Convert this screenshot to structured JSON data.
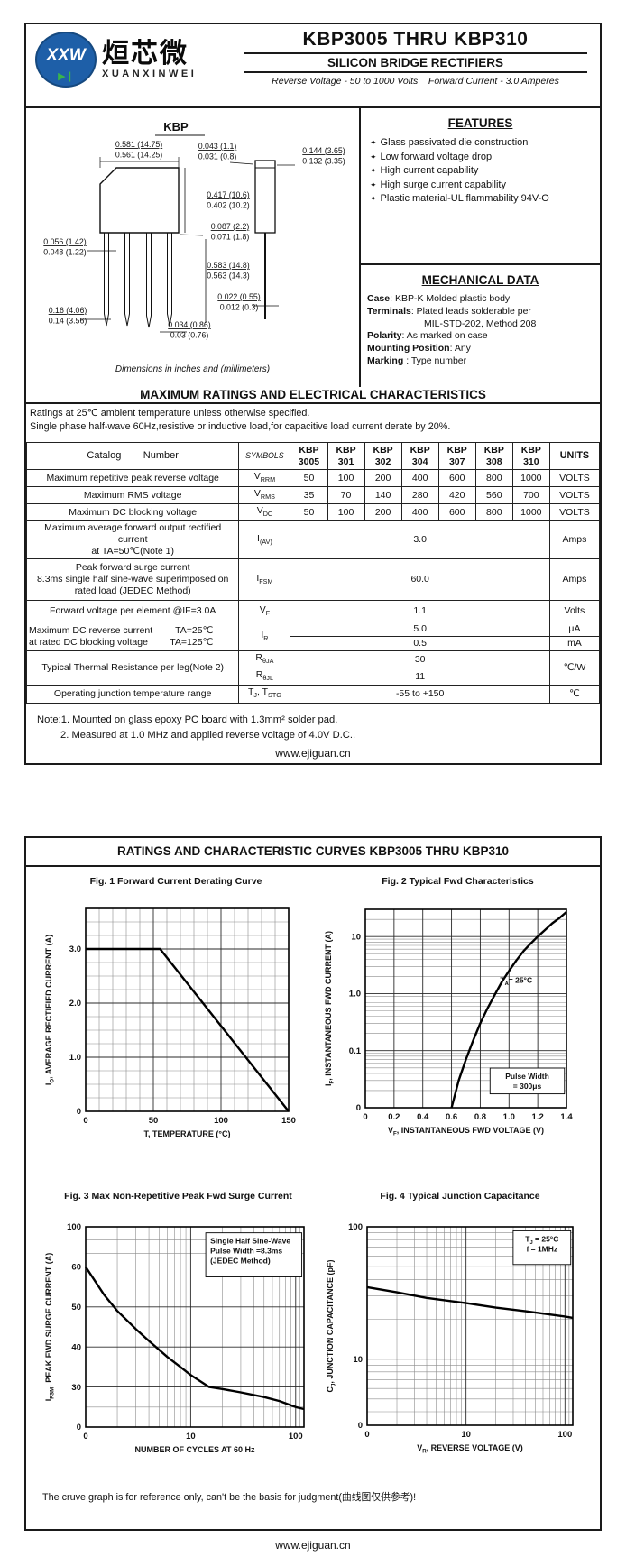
{
  "page1": {
    "logo": {
      "monogram": "XXW",
      "diode": "▶❙",
      "chinese": "烜芯微",
      "romanized": "XUANXINWEI"
    },
    "title": "KBP3005 THRU KBP310",
    "subtitle": "SILICON BRIDGE RECTIFIERS",
    "tagline": "Reverse Voltage - 50 to 1000 Volts    Forward Current - 3.0 Amperes",
    "package": {
      "name": "KBP",
      "caption": "Dimensions in inches and (millimeters)",
      "dims": [
        {
          "a": "0.581 (14.75)",
          "b": "0.561 (14.25)"
        },
        {
          "a": "0.043 (1.1)",
          "b": "0.031 (0.8)"
        },
        {
          "a": "0.144 (3.65)",
          "b": "0.132 (3.35)"
        },
        {
          "a": "0.417 (10.6)",
          "b": "0.402 (10.2)"
        },
        {
          "a": "0.087 (2.2)",
          "b": "0.071 (1.8)"
        },
        {
          "a": "0.056 (1.42)",
          "b": "0.048 (1.22)"
        },
        {
          "a": "0.583 (14.8)",
          "b": "0.563 (14.3)"
        },
        {
          "a": "0.022 (0.55)",
          "b": "0.012 (0.3)"
        },
        {
          "a": "0.16 (4.06)",
          "b": "0.14 (3.56)"
        },
        {
          "a": "0.034 (0.86)",
          "b": "0.03 (0.76)"
        }
      ]
    },
    "features": {
      "title": "FEATURES",
      "items": [
        "Glass passivated die construction",
        "Low forward voltage drop",
        "High current capability",
        "High  surge current capability",
        "Plastic material-UL flammability 94V-O"
      ]
    },
    "mechanical": {
      "title": "MECHANICAL DATA",
      "rows": [
        {
          "b": "Case",
          "t": ": KBP-K Molded plastic body"
        },
        {
          "b": "Terminals",
          "t": ": Plated leads solderable per"
        },
        {
          "b": "",
          "t": "MIL-STD-202, Method 208"
        },
        {
          "b": "Polarity",
          "t": ": As marked on case"
        },
        {
          "b": "Mounting Position",
          "t": ": Any"
        },
        {
          "b": "Marking ",
          "t": ": Type number"
        }
      ]
    },
    "ratings": {
      "title": "MAXIMUM RATINGS AND ELECTRICAL CHARACTERISTICS",
      "cond1": "Ratings at 25℃ ambient temperature unless otherwise specified.",
      "cond2": "Single phase half-wave 60Hz,resistive or inductive load,for capacitive load current derate by 20%.",
      "table": {
        "catalog_header": "Catalog        Number",
        "symbols_header": "SYMBOLS",
        "units_header": "UNITS",
        "models": [
          [
            "KBP",
            "3005"
          ],
          [
            "KBP",
            "301"
          ],
          [
            "KBP",
            "302"
          ],
          [
            "KBP",
            "304"
          ],
          [
            "KBP",
            "307"
          ],
          [
            "KBP",
            "308"
          ],
          [
            "KBP",
            "310"
          ]
        ],
        "rows": [
          {
            "label": "Maximum repetitive peak reverse voltage",
            "sym": "V",
            "sub": "RRM",
            "values": [
              "50",
              "100",
              "200",
              "400",
              "600",
              "800",
              "1000"
            ],
            "unit": "VOLTS"
          },
          {
            "label": "Maximum RMS voltage",
            "sym": "V",
            "sub": "RMS",
            "values": [
              "35",
              "70",
              "140",
              "280",
              "420",
              "560",
              "700"
            ],
            "unit": "VOLTS"
          },
          {
            "label": "Maximum DC blocking voltage",
            "sym": "V",
            "sub": "DC",
            "values": [
              "50",
              "100",
              "200",
              "400",
              "600",
              "800",
              "1000"
            ],
            "unit": "VOLTS"
          },
          {
            "label1": "Maximum average forward output rectified current",
            "label2": "at TA=50℃(Note 1)",
            "sym": "I",
            "sub": "(AV)",
            "value": "3.0",
            "unit": "Amps"
          },
          {
            "label1": "Peak forward surge current",
            "label2": "8.3ms single half sine-wave superimposed on",
            "label3": "rated load (JEDEC Method)",
            "sym": "I",
            "sub": "FSM",
            "value": "60.0",
            "unit": "Amps"
          },
          {
            "label": "Forward voltage per element  @IF=3.0A",
            "sym": "V",
            "sub": "F",
            "value": "1.1",
            "unit": "Volts"
          },
          {
            "label1": "Maximum DC reverse current",
            "cond1": "TA=25℃",
            "label2": "at rated DC blocking voltage",
            "cond2": "TA=125℃",
            "sym": "I",
            "sub": "R",
            "value1": "5.0",
            "unit1": "μA",
            "value2": "0.5",
            "unit2": "mA"
          },
          {
            "label": "Typical Thermal Resistance per leg(Note 2)",
            "sym1": "R",
            "sub1": "θJA",
            "sym2": "R",
            "sub2": "θJL",
            "value1": "30",
            "value2": "11",
            "unit": "℃/W"
          },
          {
            "label": "Operating junction temperature range",
            "symA": "T",
            "subA": "J",
            "symB": ", T",
            "subB": "STG",
            "value": "-55 to +150",
            "unit": "℃"
          }
        ]
      }
    },
    "notes": [
      "Note:1. Mounted on  glass epoxy  PC board with 1.3mm² solder pad.",
      "2. Measured at 1.0 MHz and applied reverse voltage of 4.0V D.C.."
    ],
    "footer": "www.ejiguan.cn"
  },
  "page2": {
    "title": "RATINGS AND CHARACTERISTIC CURVES KBP3005 THRU KBP310",
    "disclaimer": "The cruve graph is for reference only, can't be the basis for judgment(曲线图仅供参考)!",
    "footer": "www.ejiguan.cn"
  },
  "colors": {
    "brand_blue": "#1e5fa8",
    "diode_green": "#39b54a",
    "ink": "#111111"
  },
  "chart_data": [
    {
      "id": "fig1",
      "type": "line",
      "title": "Fig. 1 Forward Current Derating Curve",
      "xlabel": "T, TEMPERATURE (°C)",
      "ylabel": {
        "pre": "I",
        "sub": "O",
        "rest": ", AVERAGE RECTIFIED CURRENT (A)"
      },
      "xscale": {
        "type": "linear",
        "min": 0,
        "max": 150
      },
      "yscale": {
        "type": "linear",
        "min": 0,
        "max": 3.75
      },
      "xticks": [
        {
          "v": 0,
          "l": "0"
        },
        {
          "v": 50,
          "l": "50"
        },
        {
          "v": 100,
          "l": "100"
        },
        {
          "v": 150,
          "l": "150"
        }
      ],
      "yticks": [
        {
          "v": 0,
          "l": "0"
        },
        {
          "v": 1,
          "l": "1.0"
        },
        {
          "v": 2,
          "l": "2.0"
        },
        {
          "v": 3,
          "l": "3.0"
        }
      ],
      "xminor": [
        10,
        20,
        30,
        40,
        60,
        70,
        80,
        90,
        110,
        120,
        130,
        140
      ],
      "yminor": [
        0.25,
        0.5,
        0.75,
        1.25,
        1.5,
        1.75,
        2.25,
        2.5,
        2.75,
        3.25,
        3.5,
        3.75
      ],
      "points": [
        [
          0,
          3
        ],
        [
          55,
          3
        ],
        [
          150,
          0
        ]
      ]
    },
    {
      "id": "fig2",
      "type": "line",
      "title": "Fig. 2  Typical Fwd Characteristics",
      "xlabel": {
        "pre": "V",
        "sub": "F",
        "rest": ", INSTANTANEOUS FWD VOLTAGE (V)"
      },
      "ylabel": {
        "pre": "I",
        "sub": "F",
        "rest": ", INSTANTANEOUS FWD CURRENT (A)"
      },
      "xscale": {
        "type": "linear",
        "min": 0,
        "max": 1.4
      },
      "yscale": {
        "type": "log",
        "min": 0.01,
        "max": 30
      },
      "xticks": [
        {
          "v": 0,
          "l": "0"
        },
        {
          "v": 0.2,
          "l": "0.2"
        },
        {
          "v": 0.4,
          "l": "0.4"
        },
        {
          "v": 0.6,
          "l": "0.6"
        },
        {
          "v": 0.8,
          "l": "0.8"
        },
        {
          "v": 1.0,
          "l": "1.0"
        },
        {
          "v": 1.2,
          "l": "1.2"
        },
        {
          "v": 1.4,
          "l": "1.4"
        }
      ],
      "yticks": [
        {
          "v": 10,
          "l": "10"
        },
        {
          "v": 1,
          "l": "1.0"
        },
        {
          "v": 0.1,
          "l": "0.1"
        },
        {
          "v": 0.01,
          "l": "0"
        }
      ],
      "yminor": [
        0.02,
        0.03,
        0.04,
        0.05,
        0.06,
        0.07,
        0.08,
        0.09,
        0.2,
        0.3,
        0.4,
        0.5,
        0.6,
        0.7,
        0.8,
        0.9,
        2,
        3,
        4,
        5,
        6,
        7,
        8,
        9,
        20
      ],
      "points": [
        [
          0.6,
          0.01
        ],
        [
          0.65,
          0.03
        ],
        [
          0.7,
          0.07
        ],
        [
          0.75,
          0.15
        ],
        [
          0.8,
          0.3
        ],
        [
          0.85,
          0.55
        ],
        [
          0.9,
          0.95
        ],
        [
          0.95,
          1.6
        ],
        [
          1.0,
          2.5
        ],
        [
          1.05,
          3.8
        ],
        [
          1.1,
          5.5
        ],
        [
          1.15,
          7.5
        ],
        [
          1.2,
          10
        ],
        [
          1.25,
          13
        ],
        [
          1.3,
          17
        ],
        [
          1.35,
          21
        ],
        [
          1.4,
          27
        ]
      ],
      "annotations": [
        {
          "x": 0.67,
          "y": 0.37,
          "parts": {
            "pre": "T",
            "sub": "A",
            "rest": "= 25°C"
          }
        }
      ],
      "boxes": [
        {
          "x": 0.62,
          "y": 0.8,
          "w": 0.37,
          "h": 0.13,
          "align": "center",
          "lines": [
            "Pulse Width",
            "= 300μs"
          ]
        }
      ]
    },
    {
      "id": "fig3",
      "type": "line",
      "title": "Fig. 3  Max Non-Repetitive Peak Fwd Surge Current",
      "xlabel": "NUMBER OF CYCLES AT 60 Hz",
      "ylabel": {
        "pre": "I",
        "sub": "FSM",
        "rest": ",  PEAK FWD SURGE CURRENT (A)"
      },
      "xscale": {
        "type": "log",
        "min": 1,
        "max": 120
      },
      "yscale": {
        "type": "anchors",
        "anchors": [
          [
            100,
            0
          ],
          [
            60,
            0.2
          ],
          [
            50,
            0.4
          ],
          [
            40,
            0.6
          ],
          [
            30,
            0.8
          ],
          [
            0,
            1
          ]
        ]
      },
      "xticks": [
        {
          "v": 1,
          "l": "0"
        },
        {
          "v": 10,
          "l": "10"
        },
        {
          "v": 100,
          "l": "100"
        }
      ],
      "yticks": [
        {
          "v": 100,
          "l": "100"
        },
        {
          "v": 60,
          "l": "60"
        },
        {
          "v": 50,
          "l": "50"
        },
        {
          "v": 40,
          "l": "40"
        },
        {
          "v": 30,
          "l": "30"
        },
        {
          "v": 0,
          "l": "0"
        }
      ],
      "xminor": [
        2,
        3,
        4,
        5,
        6,
        7,
        8,
        9,
        20,
        30,
        40,
        50,
        60,
        70,
        80,
        90,
        110
      ],
      "yminor_frac": [
        0.066,
        0.133,
        0.9
      ],
      "points": [
        [
          1,
          60
        ],
        [
          1.5,
          53
        ],
        [
          2,
          49
        ],
        [
          3,
          44.5
        ],
        [
          4,
          41.5
        ],
        [
          6,
          37.5
        ],
        [
          8,
          35
        ],
        [
          10,
          33
        ],
        [
          15,
          30
        ],
        [
          20,
          28.5
        ],
        [
          30,
          26
        ],
        [
          50,
          22.5
        ],
        [
          70,
          19.5
        ],
        [
          100,
          15
        ],
        [
          120,
          13.5
        ]
      ],
      "boxes": [
        {
          "x": 0.55,
          "y": 0.03,
          "w": 0.44,
          "h": 0.22,
          "align": "left",
          "lines": [
            "Single Half Sine-Wave",
            "Pulse Width =8.3ms",
            "(JEDEC Method)"
          ]
        }
      ]
    },
    {
      "id": "fig4",
      "type": "line",
      "title": "Fig. 4  Typical Junction Capacitance",
      "xlabel": {
        "pre": "V",
        "sub": "R",
        "rest": ", REVERSE VOLTAGE (V)"
      },
      "ylabel": {
        "pre": "C",
        "sub": "J",
        "rest": ", JUNCTION CAPACITANCE (pF)"
      },
      "xscale": {
        "type": "log",
        "min": 1,
        "max": 120
      },
      "yscale": {
        "type": "log",
        "min": 3.16,
        "max": 100
      },
      "xticks": [
        {
          "v": 1,
          "l": "0"
        },
        {
          "v": 10,
          "l": "10"
        },
        {
          "v": 100,
          "l": "100"
        }
      ],
      "yticks": [
        {
          "v": 100,
          "l": "100"
        },
        {
          "v": 10,
          "l": "10"
        },
        {
          "v": 3.16,
          "l": "0"
        }
      ],
      "xminor": [
        2,
        3,
        4,
        5,
        6,
        7,
        8,
        9,
        20,
        30,
        40,
        50,
        60,
        70,
        80,
        90,
        110
      ],
      "yminor": [
        4,
        5,
        6,
        7,
        8,
        9,
        20,
        30,
        40,
        50,
        60,
        70,
        80,
        90
      ],
      "points": [
        [
          1,
          35
        ],
        [
          2,
          32
        ],
        [
          4,
          29
        ],
        [
          10,
          26.5
        ],
        [
          20,
          24.5
        ],
        [
          40,
          23
        ],
        [
          100,
          21
        ],
        [
          120,
          20.5
        ]
      ],
      "boxes": [
        {
          "x": 0.71,
          "y": 0.02,
          "w": 0.28,
          "h": 0.17,
          "align": "center",
          "lines": [
            {
              "pre": "T",
              "sub": "J",
              "rest": " = 25°C"
            },
            "f = 1MHz"
          ]
        }
      ]
    }
  ]
}
